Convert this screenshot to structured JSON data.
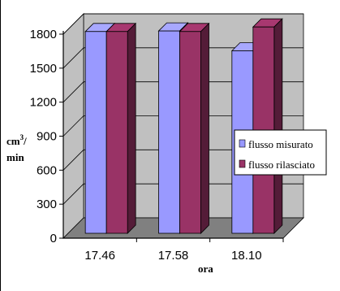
{
  "chart_data": {
    "type": "bar",
    "style": "3d-clustered-column",
    "categories": [
      "17.46",
      "17.58",
      "18.10"
    ],
    "series": [
      {
        "name": "flusso misurato",
        "values": [
          1780,
          1785,
          1610
        ],
        "color": "#9999ff"
      },
      {
        "name": "flusso rilasciato",
        "values": [
          1780,
          1780,
          1820
        ],
        "color": "#993366"
      }
    ],
    "xlabel": "ora",
    "ylabel": {
      "unit": "cm",
      "exponent": "3",
      "suffix": "/",
      "per": "min"
    },
    "ylim": [
      0,
      1800
    ],
    "yticks": [
      0,
      300,
      600,
      900,
      1200,
      1500,
      1800
    ],
    "grid": true,
    "legend": "right",
    "colors": {
      "wall": "#c0c0c0",
      "floor": "#808080",
      "grid": "#000000"
    }
  }
}
